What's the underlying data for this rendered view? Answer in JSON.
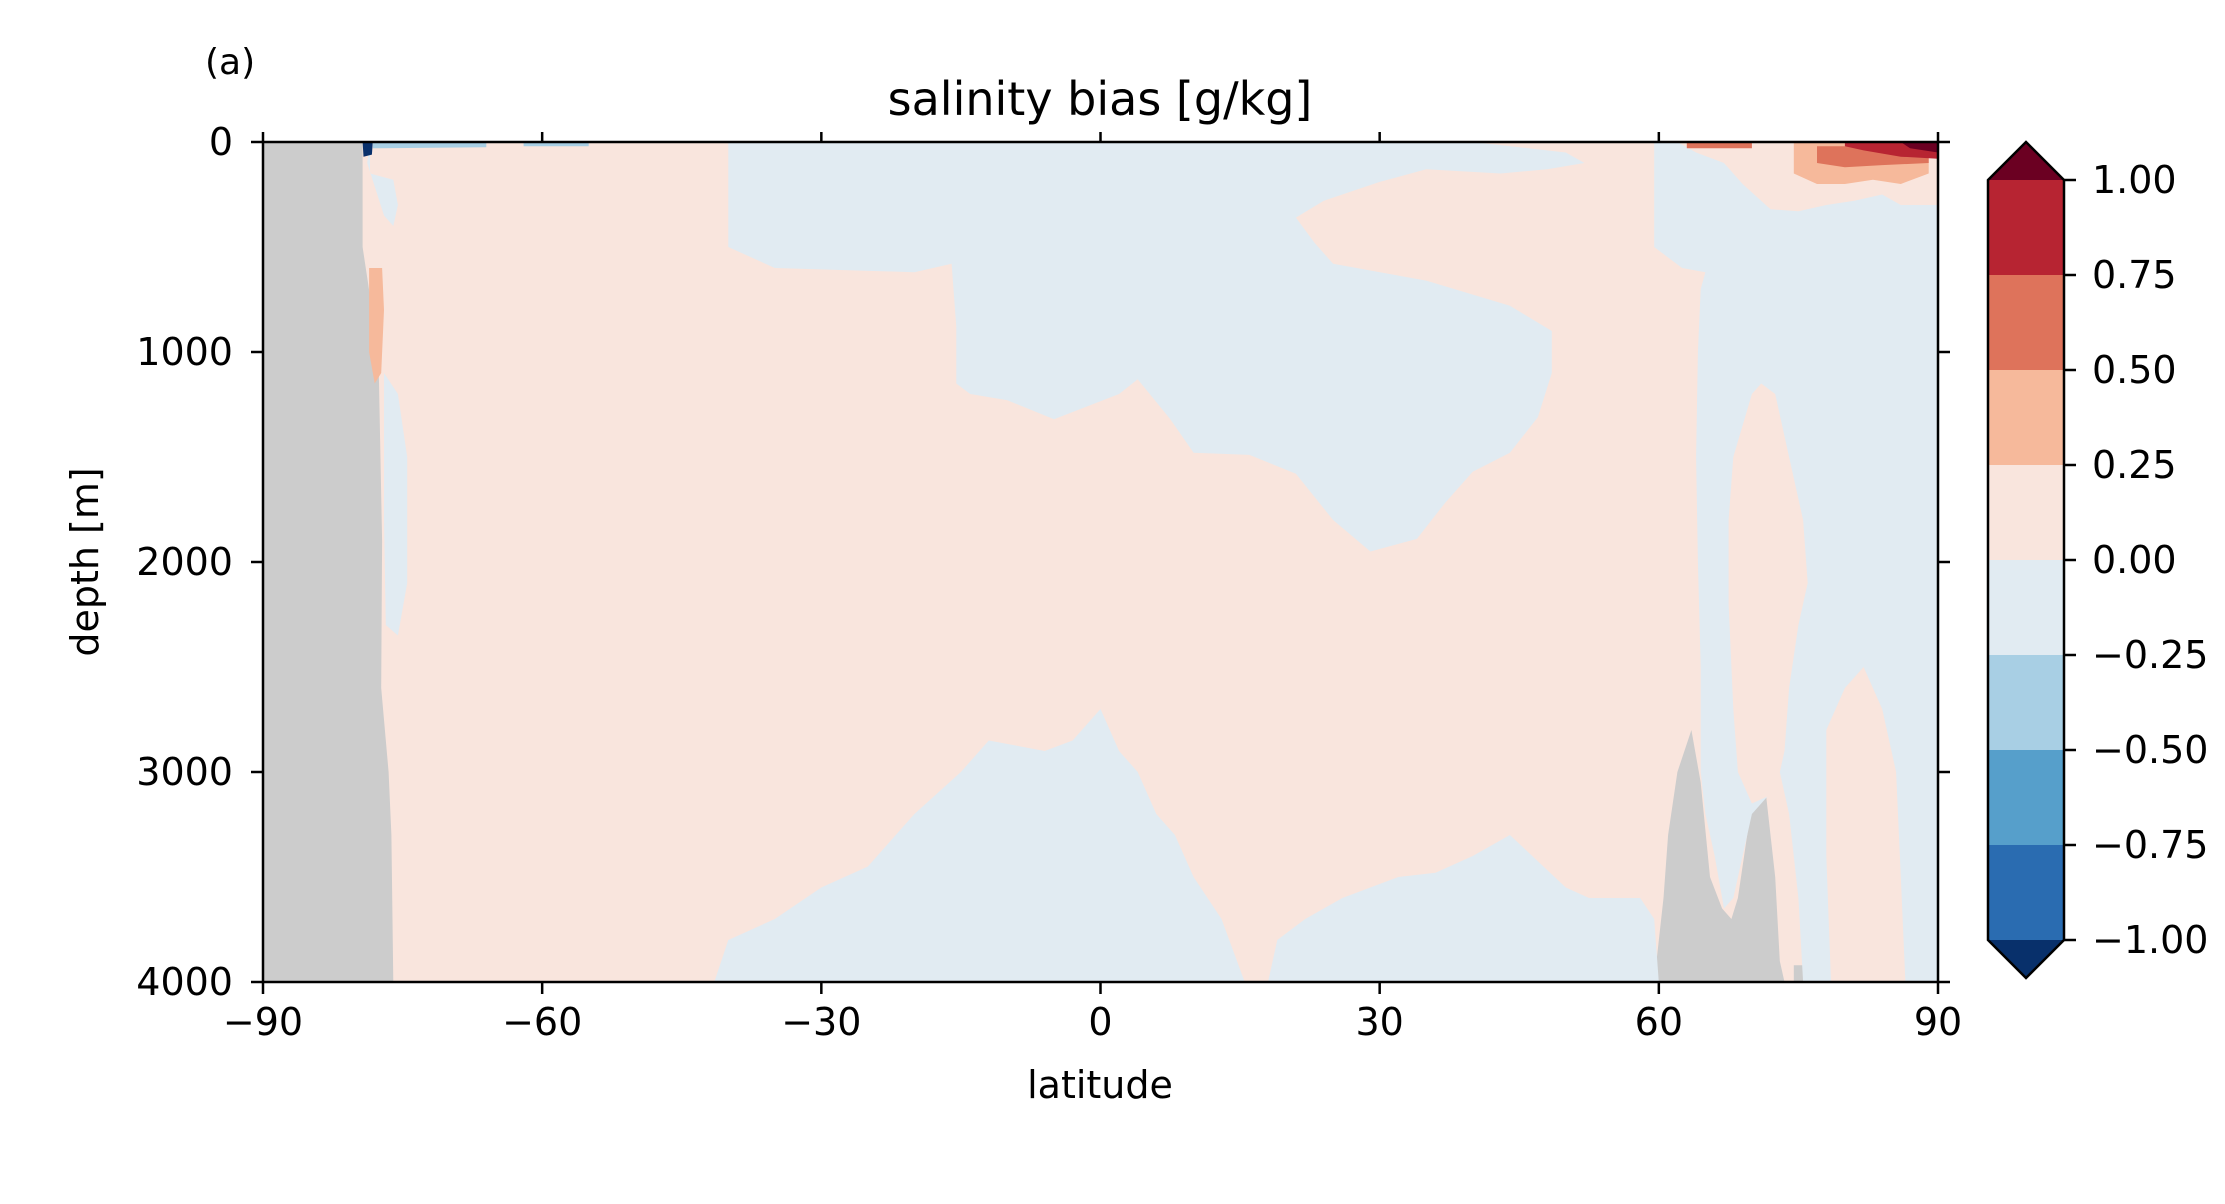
{
  "panel_label": "(a)",
  "chart_data": {
    "type": "heatmap",
    "title": "salinity bias [g/kg]",
    "xlabel": "latitude",
    "ylabel": "depth [m]",
    "xlim": [
      -90,
      90
    ],
    "ylim": [
      4000,
      0
    ],
    "y_inverted": true,
    "x_ticks": [
      -90,
      -60,
      -30,
      0,
      30,
      60,
      90
    ],
    "x_tick_labels": [
      "−90",
      "−60",
      "−30",
      "0",
      "30",
      "60",
      "90"
    ],
    "y_ticks": [
      0,
      1000,
      2000,
      3000,
      4000
    ],
    "y_tick_labels": [
      "0",
      "1000",
      "2000",
      "3000",
      "4000"
    ],
    "colorbar": {
      "levels": [
        -1.0,
        -0.75,
        -0.5,
        -0.25,
        0.0,
        0.25,
        0.5,
        0.75,
        1.0
      ],
      "labels": [
        "−1.00",
        "−0.75",
        "−0.50",
        "−0.25",
        "0.00",
        "0.25",
        "0.50",
        "0.75",
        "1.00"
      ],
      "colors": [
        "#053061",
        "#2166ac",
        "#4393c3",
        "#92c5de",
        "#d1e5f0",
        "#fddbc7",
        "#f4a582",
        "#d6604d",
        "#b2182b",
        "#67001f"
      ],
      "extend": "both",
      "display_colors": [
        "#08306b",
        "#2a6cb1",
        "#569fcb",
        "#a8cfe4",
        "#e1ebf2",
        "#f9e5dd",
        "#f6b99b",
        "#de735b",
        "#b72432",
        "#6b0022"
      ]
    },
    "land_color": "#cccccc",
    "regions": [
      {
        "kind": "land",
        "level": "land",
        "points": [
          [
            -90,
            0
          ],
          [
            -79.3,
            0
          ],
          [
            -79.3,
            500
          ],
          [
            -77.6,
            1000
          ],
          [
            -77.2,
            1900
          ],
          [
            -77.3,
            2600
          ],
          [
            -76.5,
            3000
          ],
          [
            -76.2,
            3300
          ],
          [
            -76,
            4000
          ],
          [
            -90,
            4000
          ]
        ]
      },
      {
        "kind": "land",
        "level": "land",
        "points": [
          [
            59.5,
            4000
          ],
          [
            60.5,
            3600
          ],
          [
            61,
            3300
          ],
          [
            62,
            3000
          ],
          [
            63.5,
            2800
          ],
          [
            64.5,
            3050
          ],
          [
            65.5,
            3500
          ],
          [
            66.8,
            3650
          ],
          [
            67.8,
            3700
          ],
          [
            68.5,
            3600
          ],
          [
            69.5,
            3300
          ],
          [
            70.5,
            3000
          ],
          [
            71.5,
            3100
          ],
          [
            72.5,
            3500
          ],
          [
            73,
            3900
          ],
          [
            73.5,
            4000
          ]
        ]
      },
      {
        "kind": "land",
        "level": "land",
        "points": [
          [
            74.5,
            4000
          ],
          [
            74.5,
            3920
          ],
          [
            81.5,
            3920
          ],
          [
            81.5,
            4000
          ]
        ]
      },
      {
        "kind": "fill",
        "level": "-0.25 to 0",
        "points": [
          [
            -40,
            0
          ],
          [
            -40,
            500
          ],
          [
            -35,
            600
          ],
          [
            -20,
            620
          ],
          [
            -16,
            580
          ],
          [
            -15.5,
            880
          ],
          [
            -15.5,
            1150
          ],
          [
            -14,
            1200
          ],
          [
            -10,
            1230
          ],
          [
            -5,
            1320
          ],
          [
            2,
            1200
          ],
          [
            4,
            1130
          ],
          [
            7.5,
            1320
          ],
          [
            10,
            1480
          ],
          [
            16,
            1490
          ],
          [
            21,
            1580
          ],
          [
            25,
            1800
          ],
          [
            29,
            1950
          ],
          [
            34,
            1890
          ],
          [
            37,
            1720
          ],
          [
            40,
            1570
          ],
          [
            44,
            1480
          ],
          [
            47,
            1310
          ],
          [
            48.5,
            1100
          ],
          [
            48.5,
            900
          ],
          [
            44,
            780
          ],
          [
            35,
            660
          ],
          [
            25,
            580
          ],
          [
            23,
            480
          ],
          [
            21,
            360
          ],
          [
            24,
            280
          ],
          [
            30,
            190
          ],
          [
            35,
            130
          ],
          [
            43,
            150
          ],
          [
            48,
            130
          ],
          [
            52,
            100
          ],
          [
            50,
            50
          ],
          [
            40,
            0
          ]
        ]
      },
      {
        "kind": "fill",
        "level": "-0.25 to 0",
        "points": [
          [
            -78.5,
            0
          ],
          [
            -78.5,
            150
          ],
          [
            -76,
            180
          ],
          [
            -75.5,
            300
          ],
          [
            -76,
            400
          ],
          [
            -77,
            350
          ],
          [
            -78.8,
            100
          ]
        ]
      },
      {
        "kind": "fill",
        "level": "-0.25 to 0",
        "points": [
          [
            -77,
            1100
          ],
          [
            -75.5,
            1200
          ],
          [
            -74.5,
            1500
          ],
          [
            -74.5,
            2100
          ],
          [
            -75.5,
            2350
          ],
          [
            -76.8,
            2300
          ],
          [
            -77,
            1800
          ]
        ]
      },
      {
        "kind": "fill",
        "level": "-0.25 to 0",
        "points": [
          [
            -41.5,
            4000
          ],
          [
            -40,
            3800
          ],
          [
            -35,
            3700
          ],
          [
            -30,
            3550
          ],
          [
            -25,
            3450
          ],
          [
            -20,
            3200
          ],
          [
            -15,
            3000
          ],
          [
            -12,
            2850
          ],
          [
            -6,
            2900
          ],
          [
            -3,
            2850
          ],
          [
            0,
            2700
          ],
          [
            2,
            2900
          ],
          [
            4,
            3000
          ],
          [
            6,
            3200
          ],
          [
            8,
            3300
          ],
          [
            10,
            3500
          ],
          [
            13,
            3700
          ],
          [
            15.5,
            4000
          ]
        ]
      },
      {
        "kind": "fill",
        "level": "-0.25 to 0",
        "points": [
          [
            18,
            4000
          ],
          [
            19,
            3800
          ],
          [
            22,
            3700
          ],
          [
            26,
            3600
          ],
          [
            32,
            3500
          ],
          [
            36,
            3480
          ],
          [
            40,
            3400
          ],
          [
            44,
            3300
          ],
          [
            50,
            3550
          ],
          [
            52.5,
            3600
          ],
          [
            55,
            3600
          ],
          [
            58,
            3600
          ],
          [
            59.5,
            3700
          ],
          [
            60,
            4000
          ]
        ]
      },
      {
        "kind": "fill",
        "level": "-0.25 to 0",
        "points": [
          [
            59.5,
            0
          ],
          [
            59.5,
            500
          ],
          [
            62.5,
            600
          ],
          [
            65,
            620
          ],
          [
            64.5,
            700
          ],
          [
            64.2,
            1000
          ],
          [
            64,
            1500
          ],
          [
            64.2,
            2000
          ],
          [
            64.5,
            2500
          ],
          [
            64.5,
            3000
          ],
          [
            65,
            3200
          ],
          [
            66,
            3400
          ],
          [
            67,
            3650
          ],
          [
            68,
            3600
          ],
          [
            69,
            3400
          ],
          [
            70,
            3200
          ],
          [
            72,
            3100
          ],
          [
            73,
            3000
          ],
          [
            74,
            3200
          ],
          [
            75,
            3600
          ],
          [
            75.5,
            4000
          ],
          [
            79,
            4000
          ],
          [
            79,
            3920
          ],
          [
            80.5,
            3900
          ],
          [
            82,
            4000
          ],
          [
            90,
            4000
          ],
          [
            90,
            300
          ],
          [
            86,
            300
          ],
          [
            84,
            250
          ],
          [
            81,
            280
          ],
          [
            78,
            300
          ],
          [
            75,
            330
          ],
          [
            72,
            320
          ],
          [
            69,
            200
          ],
          [
            67,
            100
          ],
          [
            64,
            50
          ],
          [
            62,
            0
          ]
        ]
      },
      {
        "kind": "fill",
        "level": "0 to 0.25",
        "points": [
          [
            68,
            1500
          ],
          [
            70,
            1200
          ],
          [
            71,
            1150
          ],
          [
            72.5,
            1200
          ],
          [
            74,
            1500
          ],
          [
            75.5,
            1800
          ],
          [
            76,
            2100
          ],
          [
            75,
            2300
          ],
          [
            74,
            2600
          ],
          [
            73.5,
            2900
          ],
          [
            72.5,
            3100
          ],
          [
            70,
            3150
          ],
          [
            68.5,
            3000
          ],
          [
            68,
            2700
          ],
          [
            67.5,
            2200
          ],
          [
            67.5,
            1800
          ]
        ]
      },
      {
        "kind": "fill",
        "level": "0 to 0.25",
        "points": [
          [
            78,
            2800
          ],
          [
            80,
            2600
          ],
          [
            82,
            2500
          ],
          [
            84,
            2700
          ],
          [
            85.5,
            3000
          ],
          [
            86,
            3500
          ],
          [
            86.5,
            4000
          ],
          [
            78.5,
            4000
          ],
          [
            78,
            3400
          ]
        ]
      },
      {
        "kind": "fill",
        "level": "0.25 to 0.5",
        "points": [
          [
            -78.6,
            600
          ],
          [
            -77.2,
            600
          ],
          [
            -77,
            800
          ],
          [
            -77.3,
            1100
          ],
          [
            -78,
            1150
          ],
          [
            -78.6,
            1000
          ]
        ]
      },
      {
        "kind": "fill",
        "level": "0.25 to 0.5",
        "points": [
          [
            74.5,
            0
          ],
          [
            89,
            0
          ],
          [
            89,
            150
          ],
          [
            86,
            200
          ],
          [
            83,
            180
          ],
          [
            80,
            200
          ],
          [
            77,
            200
          ],
          [
            74.5,
            150
          ]
        ]
      },
      {
        "kind": "fill",
        "level": "0.5 to 0.75",
        "points": [
          [
            77,
            20
          ],
          [
            89,
            20
          ],
          [
            89,
            100
          ],
          [
            84,
            110
          ],
          [
            80,
            120
          ],
          [
            77,
            100
          ]
        ]
      },
      {
        "kind": "fill",
        "level": "0.75 to 1.0",
        "points": [
          [
            80,
            0
          ],
          [
            90,
            0
          ],
          [
            90,
            80
          ],
          [
            86,
            70
          ],
          [
            82,
            40
          ],
          [
            80,
            20
          ]
        ]
      },
      {
        "kind": "fill",
        "level": "> 1.0",
        "points": [
          [
            86,
            0
          ],
          [
            90,
            0
          ],
          [
            90,
            50
          ],
          [
            87,
            30
          ]
        ]
      },
      {
        "kind": "fill",
        "level": "0.5 to 0.75",
        "points": [
          [
            63,
            0
          ],
          [
            70,
            0
          ],
          [
            70,
            30
          ],
          [
            63,
            30
          ]
        ]
      },
      {
        "kind": "fill",
        "level": "< -1.0",
        "points": [
          [
            -79.3,
            0
          ],
          [
            -78.2,
            0
          ],
          [
            -78.3,
            60
          ],
          [
            -79.2,
            70
          ]
        ]
      },
      {
        "kind": "fill",
        "level": "-0.5 to -0.25",
        "points": [
          [
            -78.2,
            0
          ],
          [
            -66,
            0
          ],
          [
            -66,
            25
          ],
          [
            -78.2,
            30
          ]
        ]
      },
      {
        "kind": "fill",
        "level": "-0.5 to -0.25",
        "points": [
          [
            -62,
            0
          ],
          [
            -55,
            0
          ],
          [
            -55,
            20
          ],
          [
            -62,
            20
          ]
        ]
      }
    ]
  }
}
